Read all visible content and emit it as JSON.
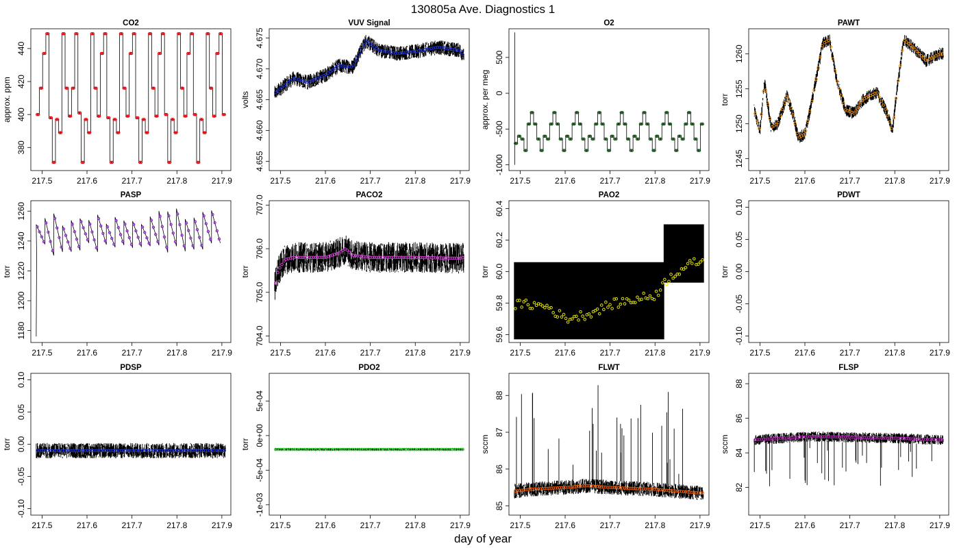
{
  "figure": {
    "title": "130805a   Ave. Diagnostics 1",
    "xlabel": "day of year"
  },
  "chart_data": [
    {
      "type": "line",
      "name": "co2-panel",
      "title": "CO2",
      "ylabel": "approx. ppm",
      "xlim": [
        217.475,
        217.92
      ],
      "ylim": [
        366,
        452
      ],
      "xticks": [
        "217.5",
        "217.6",
        "217.7",
        "217.8",
        "217.9"
      ],
      "yticks": [
        "380",
        "400",
        "420",
        "440"
      ],
      "marker_color": "#e8000b",
      "line_color": "#000000",
      "pattern": "steps",
      "levels": [
        449,
        437,
        416,
        400,
        397,
        389,
        371
      ],
      "segment_length": 0.0065,
      "level_sequence": [
        400,
        416,
        437,
        449,
        398,
        371,
        397,
        389,
        449,
        416,
        399,
        416,
        449,
        401,
        371,
        397,
        389,
        449,
        416,
        399,
        437,
        449,
        398,
        371,
        397,
        389,
        449,
        416,
        399,
        437,
        449,
        398,
        371,
        397,
        389,
        449,
        416,
        399,
        437,
        449,
        400,
        371,
        397,
        389,
        449,
        416,
        399,
        437,
        449,
        400,
        371,
        397,
        389,
        449,
        416,
        399,
        437,
        449,
        400
      ],
      "x_start": 217.487,
      "x_end": 217.908
    },
    {
      "type": "line",
      "name": "vuv-panel",
      "title": "VUV Signal",
      "ylabel": "volts",
      "xlim": [
        217.475,
        217.92
      ],
      "ylim": [
        4.6535,
        4.6765
      ],
      "xticks": [
        "217.5",
        "217.6",
        "217.7",
        "217.8",
        "217.9"
      ],
      "yticks": [
        "4.655",
        "4.660",
        "4.665",
        "4.670",
        "4.675"
      ],
      "marker_color": "#1c2fd1",
      "line_color": "#000000",
      "pattern": "trend",
      "spread": 0.0012,
      "trend_x": [
        217.487,
        217.49,
        217.5,
        217.53,
        217.56,
        217.6,
        217.63,
        217.66,
        217.69,
        217.72,
        217.76,
        217.8,
        217.85,
        217.9,
        217.908
      ],
      "trend_y": [
        4.666,
        4.6662,
        4.6668,
        4.6685,
        4.6678,
        4.669,
        4.6705,
        4.6703,
        4.6745,
        4.673,
        4.6725,
        4.6728,
        4.6735,
        4.673,
        4.672
      ]
    },
    {
      "type": "line",
      "name": "o2-panel",
      "title": "O2",
      "ylabel": "approx. per meg",
      "xlim": [
        217.475,
        217.92
      ],
      "ylim": [
        -1080,
        900
      ],
      "xticks": [
        "217.5",
        "217.6",
        "217.7",
        "217.8",
        "217.9"
      ],
      "yticks": [
        "-1000",
        "-500",
        "0",
        "500"
      ],
      "marker_color": "#0a4a0a",
      "line_color": "#000000",
      "pattern": "steps",
      "levels": [
        -270,
        -430,
        -600,
        -640,
        -800
      ],
      "segment_length": 0.0065,
      "level_sequence": [
        -700,
        -600,
        -640,
        -800,
        -430,
        -270,
        -430,
        -640,
        -800,
        -600,
        -640,
        -430,
        -270,
        -430,
        -640,
        -800,
        -600,
        -640,
        -430,
        -270,
        -430,
        -640,
        -800,
        -600,
        -640,
        -430,
        -270,
        -430,
        -640,
        -800,
        -600,
        -640,
        -430,
        -270,
        -430,
        -640,
        -800,
        -600,
        -640,
        -430,
        -270,
        -430,
        -640,
        -800,
        -600,
        -640,
        -430,
        -270,
        -430,
        -640,
        -800,
        -600,
        -640,
        -430,
        -270,
        -430,
        -640,
        -800,
        -430
      ],
      "x_start": 217.487,
      "x_end": 217.908
    },
    {
      "type": "line",
      "name": "pawt-panel",
      "title": "PAWT",
      "ylabel": "torr",
      "xlim": [
        217.475,
        217.92
      ],
      "ylim": [
        1243.3,
        1263.6
      ],
      "xticks": [
        "217.5",
        "217.6",
        "217.7",
        "217.8",
        "217.9"
      ],
      "yticks": [
        "1245",
        "1250",
        "1255",
        "1260"
      ],
      "marker_color": "#f08a00",
      "line_color": "#000000",
      "pattern": "trend",
      "spread": 0.9,
      "trend_x": [
        217.487,
        217.5,
        217.51,
        217.525,
        217.54,
        217.56,
        217.575,
        217.585,
        217.6,
        217.615,
        217.64,
        217.655,
        217.67,
        217.69,
        217.71,
        217.73,
        217.76,
        217.78,
        217.795,
        217.805,
        217.82,
        217.84,
        217.87,
        217.9,
        217.908
      ],
      "trend_y": [
        1252,
        1249,
        1256,
        1249.5,
        1250,
        1254,
        1251,
        1248,
        1248.5,
        1253,
        1261.5,
        1262,
        1256.5,
        1252,
        1251.5,
        1253.5,
        1254.5,
        1252,
        1249,
        1255,
        1262,
        1261,
        1259,
        1260,
        1260
      ]
    },
    {
      "type": "line",
      "name": "pasp-panel",
      "title": "PASP",
      "ylabel": "torr",
      "xlim": [
        217.475,
        217.92
      ],
      "ylim": [
        1172,
        1267
      ],
      "xticks": [
        "217.5",
        "217.6",
        "217.7",
        "217.8",
        "217.9"
      ],
      "yticks": [
        "1180",
        "1200",
        "1220",
        "1240",
        "1260"
      ],
      "marker_color": "#8a1fcf",
      "line_color": "#000000",
      "pattern": "sawtooth",
      "high": 1262,
      "low": 1230,
      "period": 0.0195,
      "x_start": 217.487,
      "x_end": 217.908,
      "start_spike": 1176
    },
    {
      "type": "line",
      "name": "paco2-panel",
      "title": "PACO2",
      "ylabel": "torr",
      "xlim": [
        217.475,
        217.92
      ],
      "ylim": [
        703.85,
        707.1
      ],
      "xticks": [
        "217.5",
        "217.6",
        "217.7",
        "217.8",
        "217.9"
      ],
      "yticks": [
        "704.0",
        "705.0",
        "706.0",
        "707.0"
      ],
      "marker_color": "#d63ad6",
      "line_color": "#000000",
      "pattern": "trend",
      "spread": 0.35,
      "trend_x": [
        217.487,
        217.495,
        217.51,
        217.53,
        217.6,
        217.63,
        217.645,
        217.66,
        217.7,
        217.8,
        217.9,
        217.908
      ],
      "trend_y": [
        705.1,
        705.5,
        705.75,
        705.8,
        705.8,
        705.9,
        706.0,
        705.85,
        705.8,
        705.8,
        705.78,
        705.8
      ]
    },
    {
      "type": "line",
      "name": "pao2-panel",
      "title": "PAO2",
      "ylabel": "torr",
      "xlim": [
        217.475,
        217.92
      ],
      "ylim": [
        59.55,
        60.45
      ],
      "xticks": [
        "217.5",
        "217.6",
        "217.7",
        "217.8",
        "217.9"
      ],
      "yticks": [
        "59.6",
        "59.8",
        "60.0",
        "60.2",
        "60.4"
      ],
      "marker_color": "#e6e600",
      "line_color": "#000000",
      "pattern": "quantized",
      "band_low": 59.57,
      "band_high": 60.06,
      "upper_band_start": 217.82,
      "upper_band": [
        59.93,
        60.3
      ],
      "trend_x": [
        217.487,
        217.52,
        217.56,
        217.6,
        217.65,
        217.7,
        217.75,
        217.8,
        217.83,
        217.86,
        217.9,
        217.908
      ],
      "trend_y": [
        59.79,
        59.79,
        59.78,
        59.7,
        59.73,
        59.79,
        59.82,
        59.85,
        59.96,
        60.02,
        60.07,
        60.06
      ]
    },
    {
      "type": "line",
      "name": "pdwt-panel",
      "title": "PDWT",
      "ylabel": "torr",
      "xlim": [
        217.475,
        217.92
      ],
      "ylim": [
        -0.11,
        0.11
      ],
      "xticks": [
        "217.5",
        "217.6",
        "217.7",
        "217.8",
        "217.9"
      ],
      "yticks": [
        "-0.10",
        "-0.05",
        "0.00",
        "0.05",
        "0.10"
      ],
      "marker_color": "#000000",
      "line_color": "#000000",
      "pattern": "empty"
    },
    {
      "type": "line",
      "name": "pdsp-panel",
      "title": "PDSP",
      "ylabel": "torr",
      "xlim": [
        217.475,
        217.92
      ],
      "ylim": [
        -0.11,
        0.11
      ],
      "xticks": [
        "217.5",
        "217.6",
        "217.7",
        "217.8",
        "217.9"
      ],
      "yticks": [
        "-0.10",
        "-0.05",
        "0.00",
        "0.05",
        "0.10"
      ],
      "marker_color": "#1c2fd1",
      "line_color": "#000000",
      "pattern": "trend",
      "spread": 0.012,
      "trend_x": [
        217.487,
        217.908
      ],
      "trend_y": [
        -0.01,
        -0.01
      ]
    },
    {
      "type": "line",
      "name": "pdo2-panel",
      "title": "PDO2",
      "ylabel": "torr",
      "xlim": [
        217.475,
        217.92
      ],
      "ylim": [
        -0.00115,
        0.0009
      ],
      "xticks": [
        "217.5",
        "217.6",
        "217.7",
        "217.8",
        "217.9"
      ],
      "yticks": [
        "-1e-03",
        "-5e-04",
        "0e+00",
        "5e-04"
      ],
      "marker_color": "#22cc22",
      "line_color": "#000000",
      "pattern": "trend",
      "spread": 1.5e-05,
      "trend_x": [
        217.487,
        217.908
      ],
      "trend_y": [
        -0.0002,
        -0.0002
      ]
    },
    {
      "type": "line",
      "name": "flwt-panel",
      "title": "FLWT",
      "ylabel": "sccm",
      "xlim": [
        217.475,
        217.92
      ],
      "ylim": [
        84.75,
        88.6
      ],
      "xticks": [
        "217.5",
        "217.6",
        "217.7",
        "217.8",
        "217.9"
      ],
      "yticks": [
        "85",
        "86",
        "87",
        "88"
      ],
      "marker_color": "#f05a00",
      "line_color": "#000000",
      "pattern": "spiky-up",
      "spread": 0.2,
      "spike_max": 88.3,
      "trend_x": [
        217.487,
        217.52,
        217.6,
        217.65,
        217.7,
        217.8,
        217.85,
        217.9,
        217.908
      ],
      "trend_y": [
        85.4,
        85.45,
        85.5,
        85.55,
        85.5,
        85.45,
        85.4,
        85.35,
        85.35
      ]
    },
    {
      "type": "line",
      "name": "flsp-panel",
      "title": "FLSP",
      "ylabel": "sccm",
      "xlim": [
        217.475,
        217.92
      ],
      "ylim": [
        80.4,
        88.6
      ],
      "xticks": [
        "217.5",
        "217.6",
        "217.7",
        "217.8",
        "217.9"
      ],
      "yticks": [
        "82",
        "84",
        "86",
        "88"
      ],
      "marker_color": "#b41fb4",
      "line_color": "#000000",
      "pattern": "spiky-down",
      "spread": 0.3,
      "spike_min": 81.8,
      "trend_x": [
        217.487,
        217.55,
        217.62,
        217.7,
        217.8,
        217.9,
        217.908
      ],
      "trend_y": [
        84.75,
        84.85,
        84.95,
        84.9,
        84.85,
        84.75,
        84.75
      ]
    }
  ]
}
